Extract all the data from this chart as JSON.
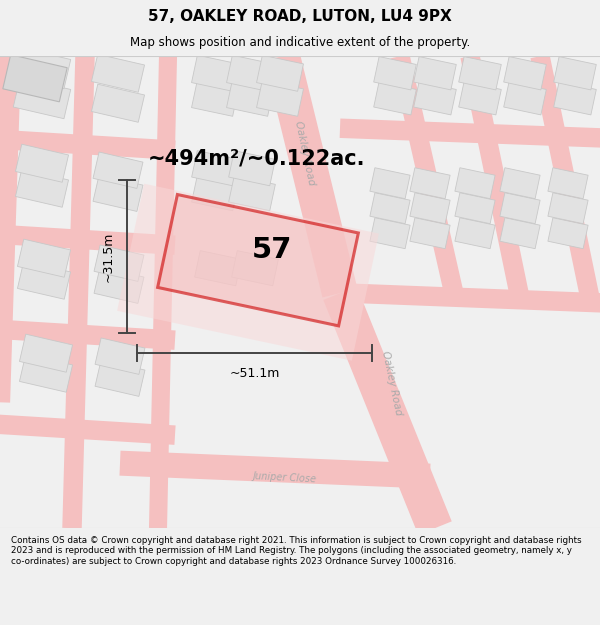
{
  "title": "57, OAKLEY ROAD, LUTON, LU4 9PX",
  "subtitle": "Map shows position and indicative extent of the property.",
  "footer": "Contains OS data © Crown copyright and database right 2021. This information is subject to Crown copyright and database rights 2023 and is reproduced with the permission of HM Land Registry. The polygons (including the associated geometry, namely x, y co-ordinates) are subject to Crown copyright and database rights 2023 Ordnance Survey 100026316.",
  "area_label": "~494m²/~0.122ac.",
  "width_label": "~51.1m",
  "height_label": "~31.5m",
  "number_label": "57",
  "bg_color": "#f0f0f0",
  "map_bg": "#ffffff",
  "road_color": "#f5c0c0",
  "building_color": "#e2e2e2",
  "building_edge": "#c8c8c8",
  "highlight_fill": "#f5c0c0",
  "highlight_edge": "#cc0000",
  "road_label_color": "#aaaaaa",
  "dim_color": "#444444",
  "title_color": "#000000",
  "footer_color": "#000000"
}
